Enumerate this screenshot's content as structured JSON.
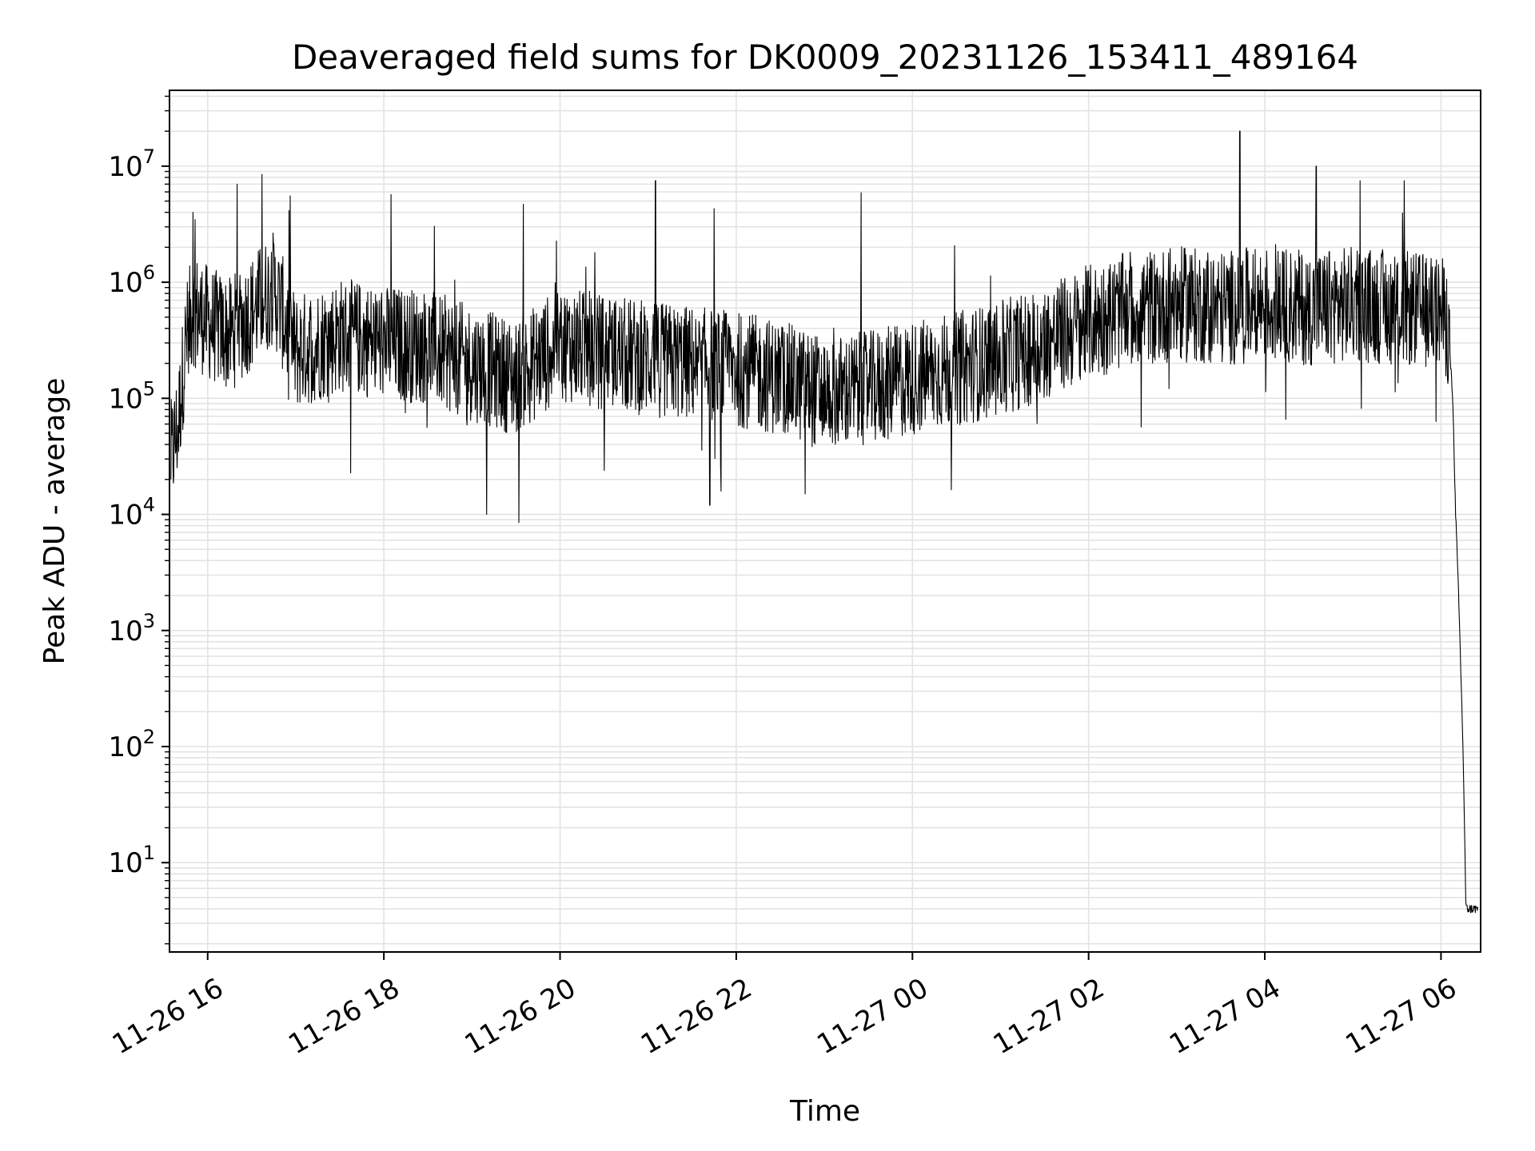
{
  "chart_data": {
    "type": "line",
    "title": "Deaveraged field sums for DK0009_20231126_153411_489164",
    "xlabel": "Time",
    "ylabel": "Peak ADU - average",
    "xlim": [
      "2023-11-26 15:34",
      "2023-11-27 06:27"
    ],
    "ylim": [
      1.7,
      45000000
    ],
    "yscale": "log",
    "grid": true,
    "x_ticks": [
      {
        "label": "11-26 16",
        "t": "2023-11-26 16:00"
      },
      {
        "label": "11-26 18",
        "t": "2023-11-26 18:00"
      },
      {
        "label": "11-26 20",
        "t": "2023-11-26 20:00"
      },
      {
        "label": "11-26 22",
        "t": "2023-11-26 22:00"
      },
      {
        "label": "11-27 00",
        "t": "2023-11-27 00:00"
      },
      {
        "label": "11-27 02",
        "t": "2023-11-27 02:00"
      },
      {
        "label": "11-27 04",
        "t": "2023-11-27 04:00"
      },
      {
        "label": "11-27 06",
        "t": "2023-11-27 06:00"
      }
    ],
    "y_ticks": [
      {
        "base": "10",
        "exp": "1",
        "value": 10
      },
      {
        "base": "10",
        "exp": "2",
        "value": 100
      },
      {
        "base": "10",
        "exp": "3",
        "value": 1000
      },
      {
        "base": "10",
        "exp": "4",
        "value": 10000
      },
      {
        "base": "10",
        "exp": "5",
        "value": 100000
      },
      {
        "base": "10",
        "exp": "6",
        "value": 1000000
      },
      {
        "base": "10",
        "exp": "7",
        "value": 10000000
      }
    ],
    "series": [
      {
        "color": "#000000",
        "points": [
          [
            "2023-11-26 15:35",
            30000
          ],
          [
            "2023-11-26 15:40",
            60000
          ],
          [
            "2023-11-26 15:45",
            300000
          ],
          [
            "2023-11-26 15:50",
            600000
          ],
          [
            "2023-11-26 16:00",
            450000
          ],
          [
            "2023-11-26 16:15",
            350000
          ],
          [
            "2023-11-26 16:30",
            550000
          ],
          [
            "2023-11-26 16:45",
            900000
          ],
          [
            "2023-11-26 17:00",
            250000
          ],
          [
            "2023-11-26 17:30",
            350000
          ],
          [
            "2023-11-26 18:00",
            300000
          ],
          [
            "2023-11-26 18:30",
            280000
          ],
          [
            "2023-11-26 19:00",
            200000
          ],
          [
            "2023-11-26 19:30",
            150000
          ],
          [
            "2023-11-26 20:00",
            300000
          ],
          [
            "2023-11-26 20:30",
            250000
          ],
          [
            "2023-11-26 21:00",
            220000
          ],
          [
            "2023-11-26 21:30",
            200000
          ],
          [
            "2023-11-26 22:00",
            180000
          ],
          [
            "2023-11-26 22:30",
            150000
          ],
          [
            "2023-11-26 23:00",
            110000
          ],
          [
            "2023-11-26 23:30",
            120000
          ],
          [
            "2023-11-27 00:00",
            150000
          ],
          [
            "2023-11-27 00:30",
            180000
          ],
          [
            "2023-11-27 01:00",
            220000
          ],
          [
            "2023-11-27 01:30",
            300000
          ],
          [
            "2023-11-27 02:00",
            450000
          ],
          [
            "2023-11-27 02:30",
            600000
          ],
          [
            "2023-11-27 03:00",
            650000
          ],
          [
            "2023-11-27 03:30",
            600000
          ],
          [
            "2023-11-27 04:00",
            650000
          ],
          [
            "2023-11-27 04:30",
            600000
          ],
          [
            "2023-11-27 05:00",
            650000
          ],
          [
            "2023-11-27 05:30",
            600000
          ],
          [
            "2023-11-27 06:00",
            550000
          ],
          [
            "2023-11-27 06:05",
            400000
          ],
          [
            "2023-11-27 06:08",
            100000
          ],
          [
            "2023-11-27 06:10",
            10000
          ],
          [
            "2023-11-27 06:12",
            2000
          ],
          [
            "2023-11-27 06:15",
            100
          ],
          [
            "2023-11-27 06:17",
            4
          ],
          [
            "2023-11-27 06:25",
            4
          ]
        ],
        "spikes": [
          [
            "2023-11-26 15:50",
            4000000
          ],
          [
            "2023-11-26 16:20",
            7000000
          ],
          [
            "2023-11-26 16:37",
            8500000
          ],
          [
            "2023-11-26 18:05",
            5700000
          ],
          [
            "2023-11-26 19:35",
            4700000
          ],
          [
            "2023-11-26 21:05",
            7500000
          ],
          [
            "2023-11-26 21:45",
            4300000
          ],
          [
            "2023-11-26 23:25",
            5900000
          ],
          [
            "2023-11-27 03:43",
            20000000
          ],
          [
            "2023-11-27 04:35",
            10000000
          ],
          [
            "2023-11-27 05:05",
            7500000
          ],
          [
            "2023-11-27 05:35",
            7500000
          ]
        ],
        "dips": [
          [
            "2023-11-26 19:10",
            10000
          ],
          [
            "2023-11-26 19:32",
            8500
          ],
          [
            "2023-11-26 21:42",
            12000
          ],
          [
            "2023-11-26 22:47",
            15000
          ],
          [
            "2023-11-26 15:35",
            20000
          ]
        ]
      }
    ]
  }
}
